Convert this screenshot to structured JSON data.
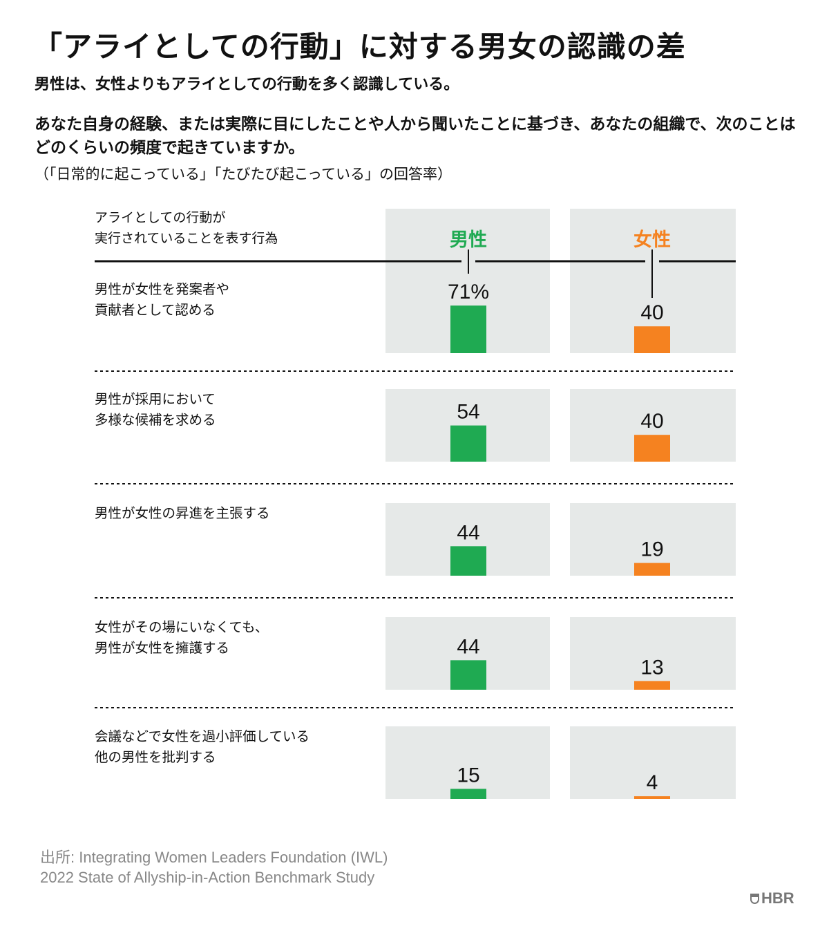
{
  "title": "「アライとしての行動」に対する男女の認識の差",
  "subtitle": "男性は、女性よりもアライとしての行動を多く認識している。",
  "question": "あなた自身の経験、または実際に目にしたことや人から聞いたことに基づき、あなたの組織で、次のことはどのくらいの頻度で起きていますか。",
  "note": "（「日常的に起こっている」「たびたび起こっている」の回答率）",
  "row_header": "アライとしての行動が\n実行されていることを表す行為",
  "source": "出所: Integrating Women Leaders Foundation (IWL)\n2022 State of Allyship-in-Action Benchmark Study",
  "logo": "HBR",
  "colors": {
    "men": "#1faa52",
    "women": "#f58220",
    "panel": "#e6e9e8"
  },
  "chart_data": {
    "type": "bar",
    "unit": "%",
    "ylim": [
      0,
      100
    ],
    "categories": [
      "男性が女性を発案者や\n貢献者として認める",
      "男性が採用において\n多様な候補を求める",
      "男性が女性の昇進を主張する",
      "女性がその場にいなくても、\n男性が女性を擁護する",
      "会議などで女性を過小評価している\n他の男性を批判する"
    ],
    "series": [
      {
        "name": "男性",
        "values": [
          71,
          54,
          44,
          44,
          15
        ],
        "labels": [
          "71%",
          "54",
          "44",
          "44",
          "15"
        ]
      },
      {
        "name": "女性",
        "values": [
          40,
          40,
          19,
          13,
          4
        ],
        "labels": [
          "40",
          "40",
          "19",
          "13",
          "4"
        ]
      }
    ]
  }
}
